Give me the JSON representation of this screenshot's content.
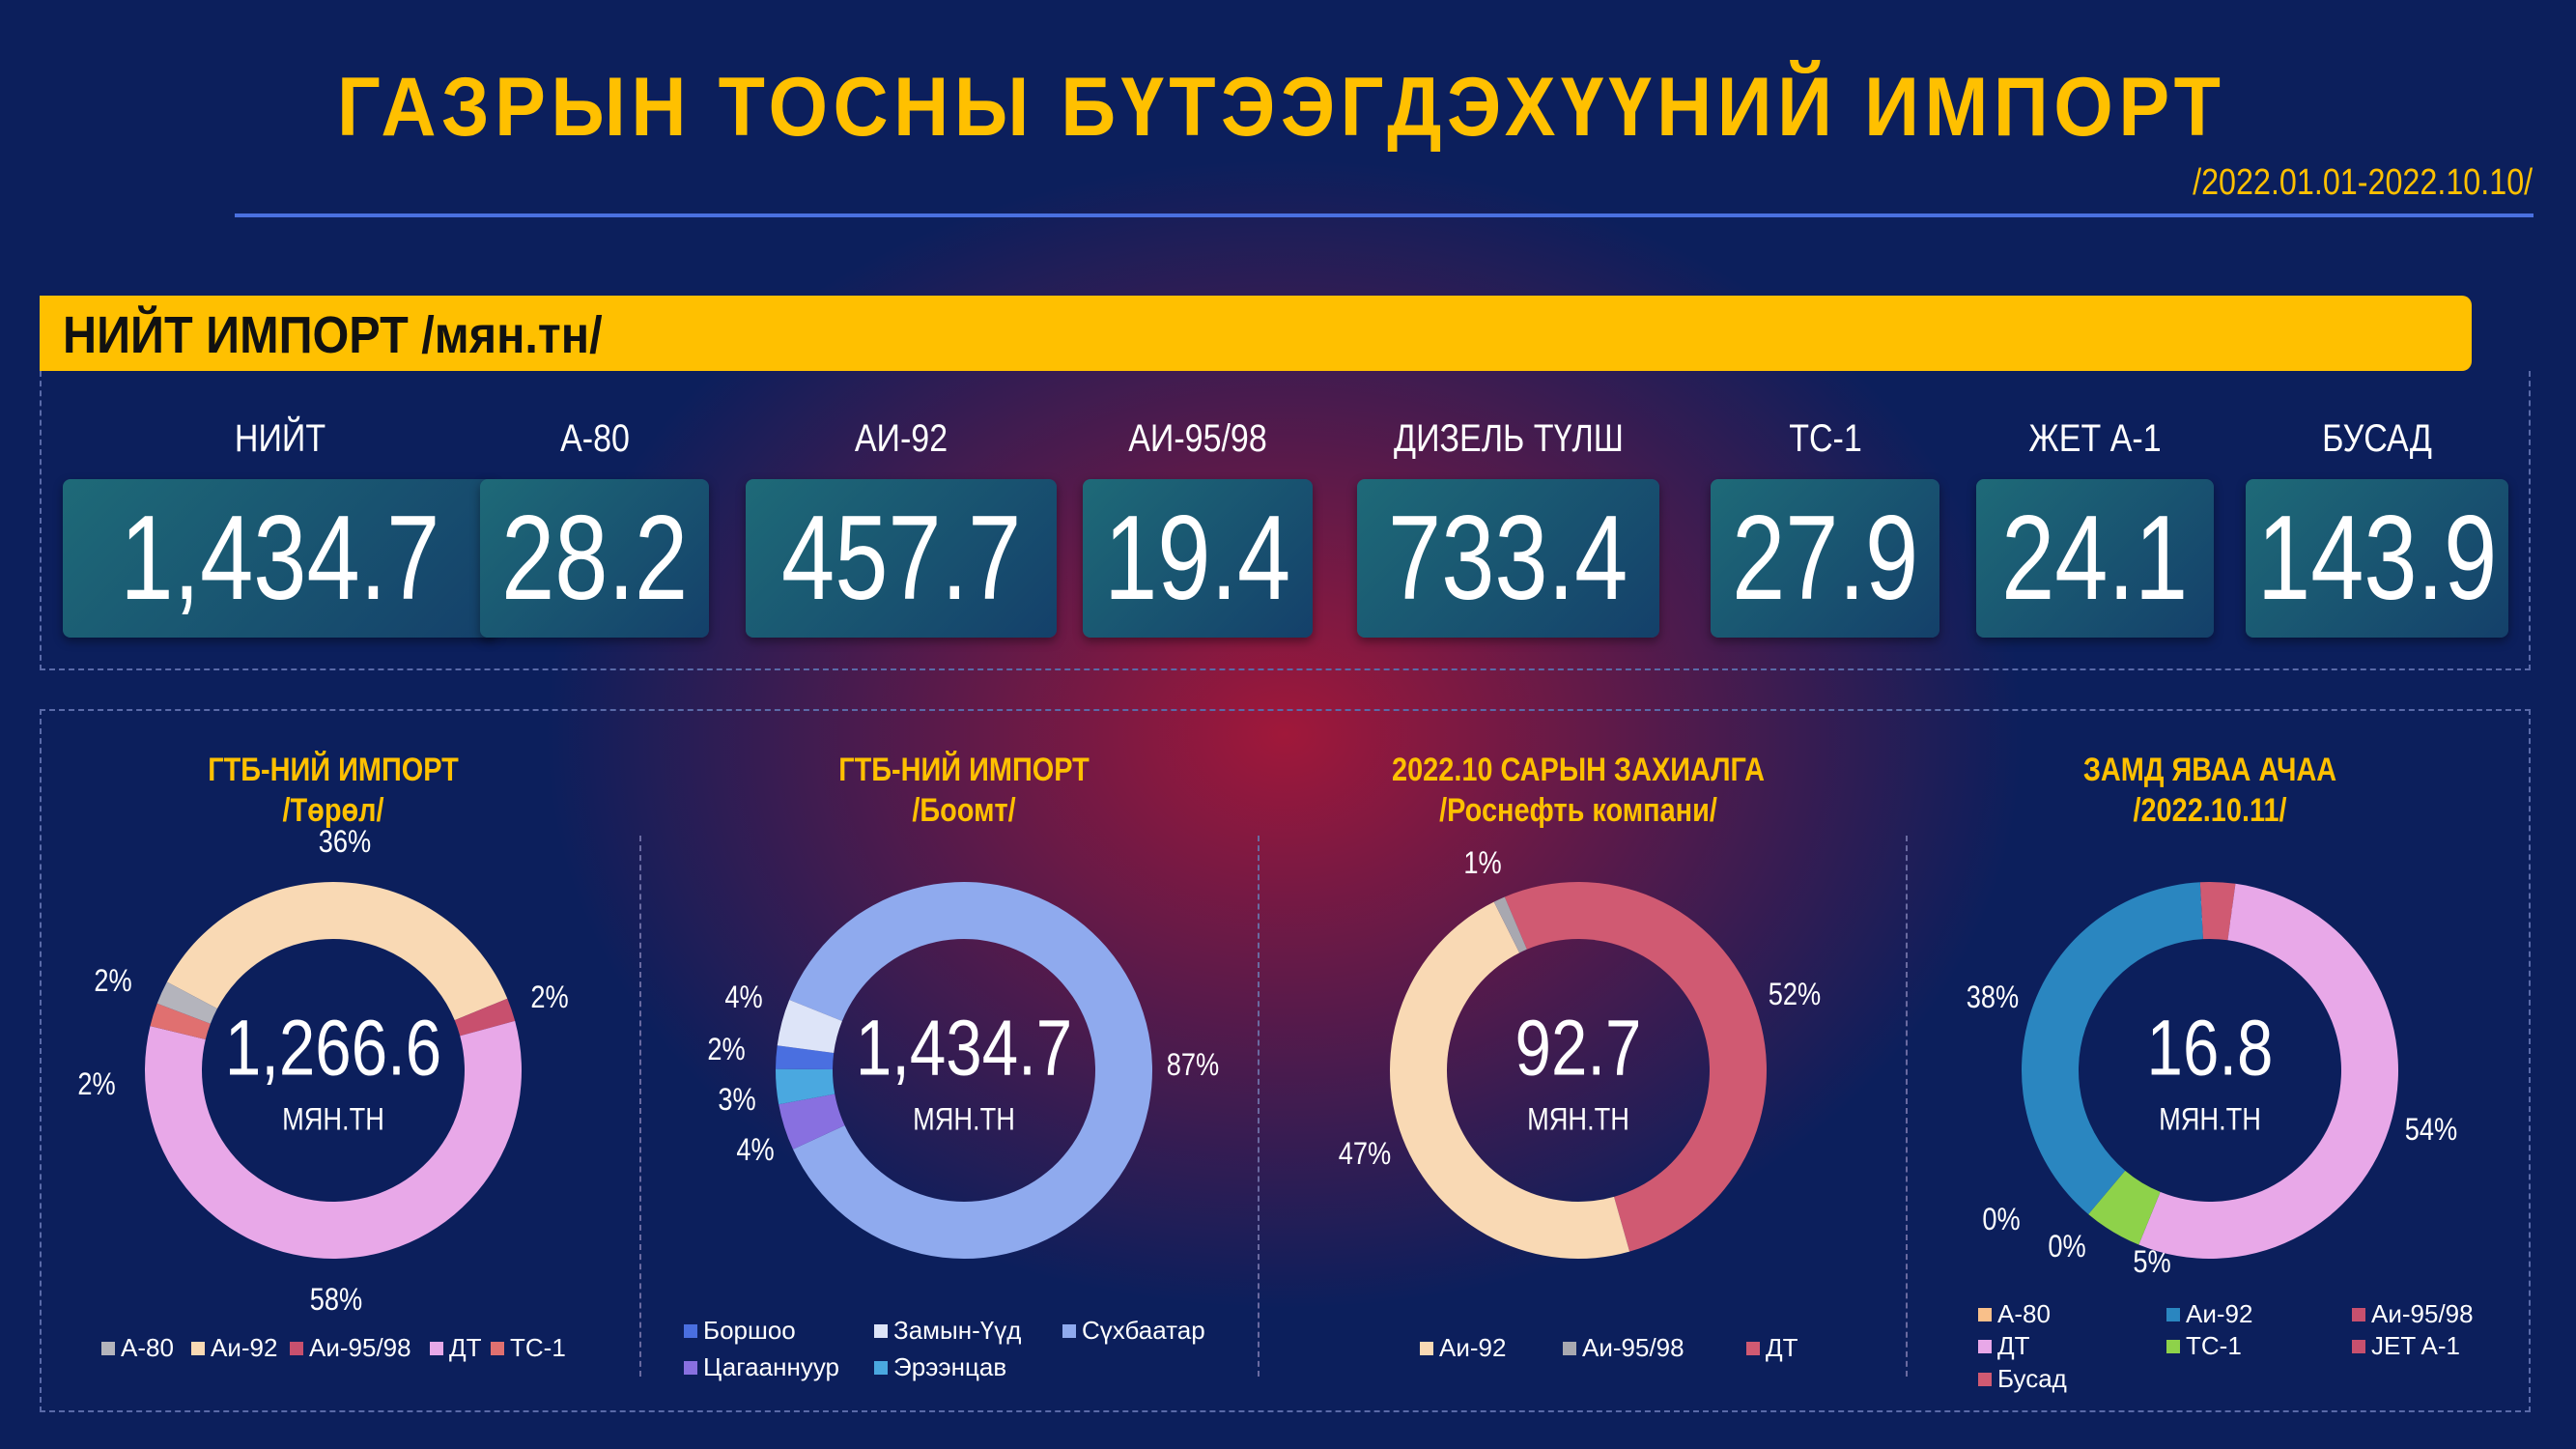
{
  "header": {
    "title": "ГАЗРЫН ТОСНЫ БҮТЭЭГДЭХҮҮНИЙ ИМПОРТ",
    "date_range": "/2022.01.01-2022.10.10/"
  },
  "summary": {
    "title": "НИЙТ ИМПОРТ /мян.тн/",
    "tiles": [
      {
        "label": "НИЙТ",
        "value": "1,434.7"
      },
      {
        "label": "А-80",
        "value": "28.2"
      },
      {
        "label": "АИ-92",
        "value": "457.7"
      },
      {
        "label": "АИ-95/98",
        "value": "19.4"
      },
      {
        "label": "ДИЗЕЛЬ ТҮЛШ",
        "value": "733.4"
      },
      {
        "label": "ТС-1",
        "value": "27.9"
      },
      {
        "label": "ЖЕТ А-1",
        "value": "24.1"
      },
      {
        "label": "БУСАД",
        "value": "143.9"
      }
    ]
  },
  "chart_data": [
    {
      "type": "pie",
      "title": "ГТБ-НИЙ ИМПОРТ",
      "subtitle": "/Төрөл/",
      "center_value": "1,266.6",
      "center_unit": "МЯН.ТН",
      "legend": [
        "А-80",
        "Аи-92",
        "Аи-95/98",
        "ДТ",
        "ТС-1"
      ],
      "slices": [
        {
          "name": "Аи-92",
          "value": 36,
          "label": "36%",
          "color": "#f9d9b4"
        },
        {
          "name": "Аи-95/98",
          "value": 2,
          "label": "2%",
          "color": "#c8506e"
        },
        {
          "name": "ДТ",
          "value": 58,
          "label": "58%",
          "color": "#e8a8e8"
        },
        {
          "name": "ТС-1",
          "value": 2,
          "label": "2%",
          "color": "#e07070"
        },
        {
          "name": "А-80",
          "value": 2,
          "label": "2%",
          "color": "#b4b4bc"
        }
      ]
    },
    {
      "type": "pie",
      "title": "ГТБ-НИЙ ИМПОРТ",
      "subtitle": "/Боомт/",
      "center_value": "1,434.7",
      "center_unit": "МЯН.ТН",
      "legend": [
        "Боршоо",
        "Замын-Үүд",
        "Сүхбаатар",
        "Цагааннуур",
        "Эрээнцав"
      ],
      "slices": [
        {
          "name": "Сүхбаатар",
          "value": 87,
          "label": "87%",
          "color": "#8faaee"
        },
        {
          "name": "Цагааннуур",
          "value": 4,
          "label": "4%",
          "color": "#8870e0"
        },
        {
          "name": "Эрээнцав",
          "value": 3,
          "label": "3%",
          "color": "#4aa8e0"
        },
        {
          "name": "Боршоо",
          "value": 2,
          "label": "2%",
          "color": "#4a6fe0"
        },
        {
          "name": "Замын-Үүд",
          "value": 4,
          "label": "4%",
          "color": "#dde4f8"
        }
      ]
    },
    {
      "type": "pie",
      "title": "2022.10 САРЫН ЗАХИАЛГА",
      "subtitle": "/Роснефть компани/",
      "center_value": "92.7",
      "center_unit": "МЯН.ТН",
      "legend": [
        "Аи-92",
        "Аи-95/98",
        "ДТ"
      ],
      "slices": [
        {
          "name": "ДТ",
          "value": 52,
          "label": "52%",
          "color": "#d05a72"
        },
        {
          "name": "Аи-92",
          "value": 47,
          "label": "47%",
          "color": "#f9d9b4"
        },
        {
          "name": "Аи-95/98",
          "value": 1,
          "label": "1%",
          "color": "#a8a8b0"
        }
      ]
    },
    {
      "type": "pie",
      "title": "ЗАМД ЯВАА АЧАА",
      "subtitle": "/2022.10.11/",
      "center_value": "16.8",
      "center_unit": "МЯН.ТН",
      "legend": [
        "А-80",
        "Аи-92",
        "Аи-95/98",
        "ДТ",
        "ТС-1",
        "JET A-1",
        "Бусад"
      ],
      "slices": [
        {
          "name": "Бусад",
          "value": 3,
          "label": "3%",
          "color": "#d05a72"
        },
        {
          "name": "ДТ",
          "value": 54,
          "label": "54%",
          "color": "#e8a8e8"
        },
        {
          "name": "ТС-1",
          "value": 5,
          "label": "5%",
          "color": "#8ed24a"
        },
        {
          "name": "А-80",
          "value": 0,
          "label": "0%",
          "color": "#f9c08a"
        },
        {
          "name": "Аи-95/98",
          "value": 0,
          "label": "0%",
          "color": "#c8506e"
        },
        {
          "name": "Аи-92",
          "value": 38,
          "label": "38%",
          "color": "#2a86c0"
        }
      ]
    }
  ]
}
